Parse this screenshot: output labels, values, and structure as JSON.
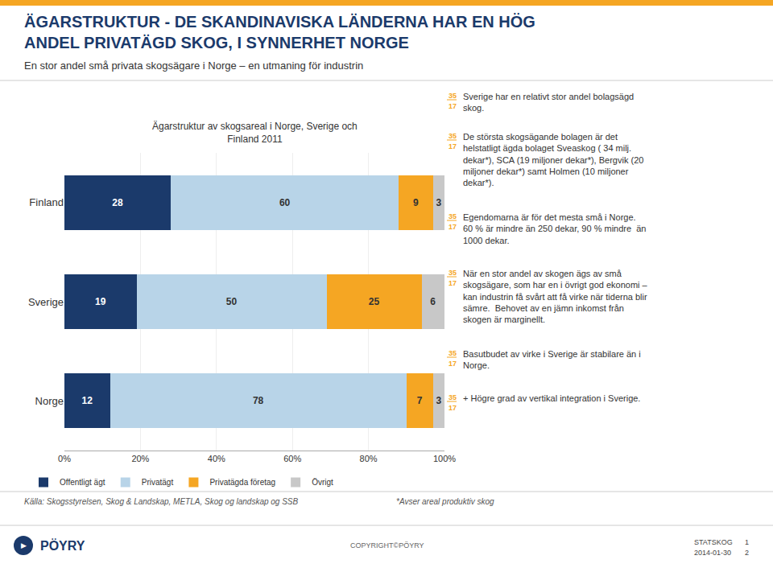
{
  "chart_data": {
    "type": "bar",
    "orientation": "horizontal",
    "stacked": true,
    "title": "ÄGARSTRUKTUR - DE SKANDINAVISKA LÄNDERNA HAR EN HÖG\nANDEL PRIVATÄGD SKOG, I SYNNERHET NORGE",
    "subtitle": "En stor andel små privata skogsägare i Norge – en utmaning för industrin",
    "categories": [
      "Norge",
      "Sverige",
      "Finland"
    ],
    "series": [
      {
        "name": "Offentligt ägt",
        "color": "#1B3A6B",
        "values": [
          12,
          19,
          28
        ]
      },
      {
        "name": "Privatägt",
        "color": "#B8D4E8",
        "values": [
          78,
          50,
          60
        ]
      },
      {
        "name": "Privatägda företag",
        "color": "#F5A623",
        "values": [
          7,
          25,
          9
        ]
      },
      {
        "name": "Övrigt",
        "color": "#C8C8C8",
        "values": [
          3,
          6,
          3
        ]
      }
    ],
    "xlim": [
      0,
      100
    ],
    "xticks": [
      {
        "value": 0,
        "label": "0%"
      },
      {
        "value": 20,
        "label": "20%"
      },
      {
        "value": 40,
        "label": "40%"
      },
      {
        "value": 60,
        "label": "60%"
      },
      {
        "value": 80,
        "label": "80%"
      },
      {
        "value": 100,
        "label": "100%"
      }
    ],
    "grid": true,
    "legend": "bottom left",
    "data_labels": true,
    "annotations": [
      "Ägarstruktur av skogsareal i Norge, Sverige och\nFinland 2011",
      "35",
      "17",
      "Sverige har en relativt stor andel bolagsägd\nskog.",
      "35",
      "17",
      "De största skogsägande bolagen är det\nhelstatligt ägda bolaget Sveaskog ( 34 milj.\ndekar*), SCA (19 miljoner dekar*), Bergvik (20\nmiljoner dekar*) samt Holmen (10 miljoner\ndekar*).",
      "35",
      "17",
      "Egendomarna är för det mesta små i Norge.\n60 % är mindre än 250 dekar, 90 % mindre  än\n1000 dekar.",
      "35",
      "17",
      "När en stor andel av skogen ägs av små\nskogsägare, som har en i övrigt god ekonomi –\nkan industrin få svårt att få virke när tiderna blir\nsämre.  Behovet av en jämn inkomst från\nskogen är marginellt.",
      "35",
      "17",
      "Basutbudet av virke i Sverige är stabilare än i\nNorge.",
      "35",
      "17",
      "+ Högre grad av vertikal integration i Sverige.",
      "Källa: Skogsstyrelsen, Skog & Landskap, METLA, Skog og landskap og SSB",
      "*Avser areal produktiv skog",
      "▶",
      "PÖYRY",
      "COPYRIGHT©PÖYRY",
      "STATSKOG",
      "2014-01-30",
      "1",
      "2"
    ]
  }
}
